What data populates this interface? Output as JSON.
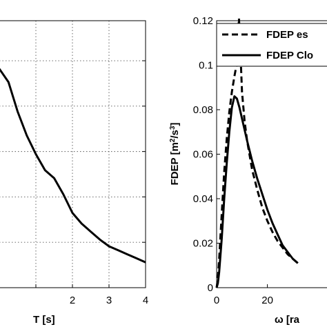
{
  "chart_data": [
    {
      "type": "line",
      "xlabel": "T [s]",
      "ylabel": "",
      "xlim": [
        0,
        4
      ],
      "ylim": [
        0,
        1
      ],
      "xticks": [
        "",
        "2",
        "3",
        "4"
      ],
      "grid": true,
      "series": [
        {
          "name": "",
          "x": [
            0.0,
            0.25,
            0.5,
            0.75,
            1.0,
            1.25,
            1.5,
            1.75,
            2.0,
            2.25,
            2.5,
            2.75,
            3.0,
            3.25,
            3.5,
            3.75,
            4.0
          ],
          "y": [
            0.82,
            0.77,
            0.66,
            0.57,
            0.5,
            0.44,
            0.41,
            0.35,
            0.28,
            0.24,
            0.21,
            0.18,
            0.155,
            0.14,
            0.125,
            0.11,
            0.095
          ],
          "style": "solid"
        }
      ]
    },
    {
      "type": "line",
      "xlabel": "ω [ra",
      "ylabel": "FDEP [m²/s³]",
      "xlim": [
        0,
        40
      ],
      "ylim": [
        0,
        0.12
      ],
      "xticks": [
        "0",
        "20"
      ],
      "yticks": [
        "0",
        "0.02",
        "0.04",
        "0.06",
        "0.08",
        "0.1",
        "0.12"
      ],
      "grid": false,
      "legend_position": "top-right",
      "series": [
        {
          "name": "FDEP es",
          "style": "dashed",
          "x": [
            0,
            0.5,
            1,
            2,
            3,
            4,
            5,
            6,
            7,
            8,
            8.8,
            9.5,
            10,
            11,
            12,
            14,
            16,
            18,
            20,
            22,
            24,
            26,
            28,
            30,
            32
          ],
          "y": [
            0,
            0.004,
            0.013,
            0.033,
            0.052,
            0.067,
            0.079,
            0.088,
            0.095,
            0.101,
            0.121,
            0.102,
            0.088,
            0.075,
            0.066,
            0.053,
            0.044,
            0.036,
            0.03,
            0.025,
            0.021,
            0.018,
            0.015,
            0.013,
            0.011
          ]
        },
        {
          "name": "FDEP Clo",
          "style": "solid",
          "x": [
            0,
            0.5,
            1,
            2,
            3,
            4,
            5,
            6,
            7,
            8,
            9,
            10,
            12,
            14,
            16,
            18,
            20,
            22,
            24,
            26,
            28,
            30,
            32
          ],
          "y": [
            0,
            0.002,
            0.007,
            0.022,
            0.04,
            0.056,
            0.07,
            0.081,
            0.086,
            0.085,
            0.081,
            0.076,
            0.066,
            0.057,
            0.049,
            0.042,
            0.035,
            0.029,
            0.024,
            0.019,
            0.016,
            0.013,
            0.011
          ]
        }
      ]
    }
  ]
}
